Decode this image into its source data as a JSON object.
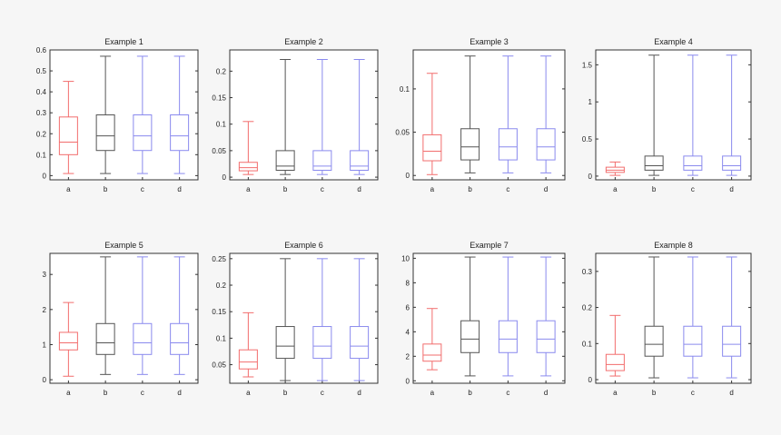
{
  "colors": {
    "page_bg": "#f6f6f6",
    "axes_bg": "#ffffff",
    "axes_frame": "#333333",
    "series_colors": [
      "#f26d6d",
      "#555555",
      "#8a8aee",
      "#8a8aee"
    ]
  },
  "chart_data": [
    {
      "type": "box",
      "title": "Example 1",
      "categories": [
        "a",
        "b",
        "c",
        "d"
      ],
      "ylim": [
        -0.02,
        0.6
      ],
      "yticks": [
        0,
        0.1,
        0.2,
        0.3,
        0.4,
        0.5,
        0.6
      ],
      "ytick_labels": [
        "0",
        "0.1",
        "0.2",
        "0.3",
        "0.4",
        "0.5",
        "0.6"
      ],
      "boxes": [
        {
          "whisker_low": 0.01,
          "q1": 0.1,
          "median": 0.16,
          "q3": 0.28,
          "whisker_high": 0.45
        },
        {
          "whisker_low": 0.01,
          "q1": 0.12,
          "median": 0.19,
          "q3": 0.29,
          "whisker_high": 0.57
        },
        {
          "whisker_low": 0.01,
          "q1": 0.12,
          "median": 0.19,
          "q3": 0.29,
          "whisker_high": 0.57
        },
        {
          "whisker_low": 0.01,
          "q1": 0.12,
          "median": 0.19,
          "q3": 0.29,
          "whisker_high": 0.57
        }
      ]
    },
    {
      "type": "box",
      "title": "Example 2",
      "categories": [
        "a",
        "b",
        "c",
        "d"
      ],
      "ylim": [
        -0.005,
        0.24
      ],
      "yticks": [
        0,
        0.05,
        0.1,
        0.15,
        0.2
      ],
      "ytick_labels": [
        "0",
        "0.05",
        "0.1",
        "0.15",
        "0.2"
      ],
      "boxes": [
        {
          "whisker_low": 0.005,
          "q1": 0.012,
          "median": 0.018,
          "q3": 0.028,
          "whisker_high": 0.105
        },
        {
          "whisker_low": 0.005,
          "q1": 0.013,
          "median": 0.021,
          "q3": 0.05,
          "whisker_high": 0.222
        },
        {
          "whisker_low": 0.005,
          "q1": 0.013,
          "median": 0.021,
          "q3": 0.05,
          "whisker_high": 0.222
        },
        {
          "whisker_low": 0.005,
          "q1": 0.013,
          "median": 0.021,
          "q3": 0.05,
          "whisker_high": 0.222
        }
      ]
    },
    {
      "type": "box",
      "title": "Example 3",
      "categories": [
        "a",
        "b",
        "c",
        "d"
      ],
      "ylim": [
        -0.005,
        0.145
      ],
      "yticks": [
        0,
        0.05,
        0.1
      ],
      "ytick_labels": [
        "0",
        "0.05",
        "0.1"
      ],
      "boxes": [
        {
          "whisker_low": 0.001,
          "q1": 0.017,
          "median": 0.028,
          "q3": 0.047,
          "whisker_high": 0.118
        },
        {
          "whisker_low": 0.003,
          "q1": 0.018,
          "median": 0.033,
          "q3": 0.054,
          "whisker_high": 0.138
        },
        {
          "whisker_low": 0.003,
          "q1": 0.018,
          "median": 0.033,
          "q3": 0.054,
          "whisker_high": 0.138
        },
        {
          "whisker_low": 0.003,
          "q1": 0.018,
          "median": 0.033,
          "q3": 0.054,
          "whisker_high": 0.138
        }
      ]
    },
    {
      "type": "box",
      "title": "Example 4",
      "categories": [
        "a",
        "b",
        "c",
        "d"
      ],
      "ylim": [
        -0.05,
        1.7
      ],
      "yticks": [
        0,
        0.5,
        1,
        1.5
      ],
      "ytick_labels": [
        "0",
        "0.5",
        "1",
        "1.5"
      ],
      "boxes": [
        {
          "whisker_low": 0.01,
          "q1": 0.05,
          "median": 0.08,
          "q3": 0.12,
          "whisker_high": 0.19
        },
        {
          "whisker_low": 0.01,
          "q1": 0.08,
          "median": 0.14,
          "q3": 0.27,
          "whisker_high": 1.63
        },
        {
          "whisker_low": 0.01,
          "q1": 0.08,
          "median": 0.14,
          "q3": 0.27,
          "whisker_high": 1.63
        },
        {
          "whisker_low": 0.01,
          "q1": 0.08,
          "median": 0.14,
          "q3": 0.27,
          "whisker_high": 1.63
        }
      ]
    },
    {
      "type": "box",
      "title": "Example 5",
      "categories": [
        "a",
        "b",
        "c",
        "d"
      ],
      "ylim": [
        -0.1,
        3.6
      ],
      "yticks": [
        0,
        1,
        2,
        3
      ],
      "ytick_labels": [
        "0",
        "1",
        "2",
        "3"
      ],
      "boxes": [
        {
          "whisker_low": 0.1,
          "q1": 0.85,
          "median": 1.05,
          "q3": 1.35,
          "whisker_high": 2.2
        },
        {
          "whisker_low": 0.15,
          "q1": 0.72,
          "median": 1.05,
          "q3": 1.6,
          "whisker_high": 3.5
        },
        {
          "whisker_low": 0.15,
          "q1": 0.72,
          "median": 1.05,
          "q3": 1.6,
          "whisker_high": 3.5
        },
        {
          "whisker_low": 0.15,
          "q1": 0.72,
          "median": 1.05,
          "q3": 1.6,
          "whisker_high": 3.5
        }
      ]
    },
    {
      "type": "box",
      "title": "Example 6",
      "categories": [
        "a",
        "b",
        "c",
        "d"
      ],
      "ylim": [
        0.015,
        0.26
      ],
      "yticks": [
        0.05,
        0.1,
        0.15,
        0.2,
        0.25
      ],
      "ytick_labels": [
        "0.05",
        "0.1",
        "0.15",
        "0.2",
        "0.25"
      ],
      "boxes": [
        {
          "whisker_low": 0.027,
          "q1": 0.042,
          "median": 0.055,
          "q3": 0.078,
          "whisker_high": 0.148
        },
        {
          "whisker_low": 0.02,
          "q1": 0.062,
          "median": 0.085,
          "q3": 0.122,
          "whisker_high": 0.25
        },
        {
          "whisker_low": 0.02,
          "q1": 0.062,
          "median": 0.085,
          "q3": 0.122,
          "whisker_high": 0.25
        },
        {
          "whisker_low": 0.02,
          "q1": 0.062,
          "median": 0.085,
          "q3": 0.122,
          "whisker_high": 0.25
        }
      ]
    },
    {
      "type": "box",
      "title": "Example 7",
      "categories": [
        "a",
        "b",
        "c",
        "d"
      ],
      "ylim": [
        -0.2,
        10.4
      ],
      "yticks": [
        0,
        2,
        4,
        6,
        8,
        10
      ],
      "ytick_labels": [
        "0",
        "2",
        "4",
        "6",
        "8",
        "10"
      ],
      "boxes": [
        {
          "whisker_low": 0.9,
          "q1": 1.6,
          "median": 2.1,
          "q3": 3.0,
          "whisker_high": 5.9
        },
        {
          "whisker_low": 0.4,
          "q1": 2.3,
          "median": 3.4,
          "q3": 4.9,
          "whisker_high": 10.1
        },
        {
          "whisker_low": 0.4,
          "q1": 2.3,
          "median": 3.4,
          "q3": 4.9,
          "whisker_high": 10.1
        },
        {
          "whisker_low": 0.4,
          "q1": 2.3,
          "median": 3.4,
          "q3": 4.9,
          "whisker_high": 10.1
        }
      ]
    },
    {
      "type": "box",
      "title": "Example 8",
      "categories": [
        "a",
        "b",
        "c",
        "d"
      ],
      "ylim": [
        -0.01,
        0.35
      ],
      "yticks": [
        0,
        0.1,
        0.2,
        0.3
      ],
      "ytick_labels": [
        "0",
        "0.1",
        "0.2",
        "0.3"
      ],
      "boxes": [
        {
          "whisker_low": 0.01,
          "q1": 0.025,
          "median": 0.042,
          "q3": 0.07,
          "whisker_high": 0.178
        },
        {
          "whisker_low": 0.005,
          "q1": 0.065,
          "median": 0.098,
          "q3": 0.148,
          "whisker_high": 0.34
        },
        {
          "whisker_low": 0.005,
          "q1": 0.065,
          "median": 0.098,
          "q3": 0.148,
          "whisker_high": 0.34
        },
        {
          "whisker_low": 0.005,
          "q1": 0.065,
          "median": 0.098,
          "q3": 0.148,
          "whisker_high": 0.34
        }
      ]
    }
  ]
}
